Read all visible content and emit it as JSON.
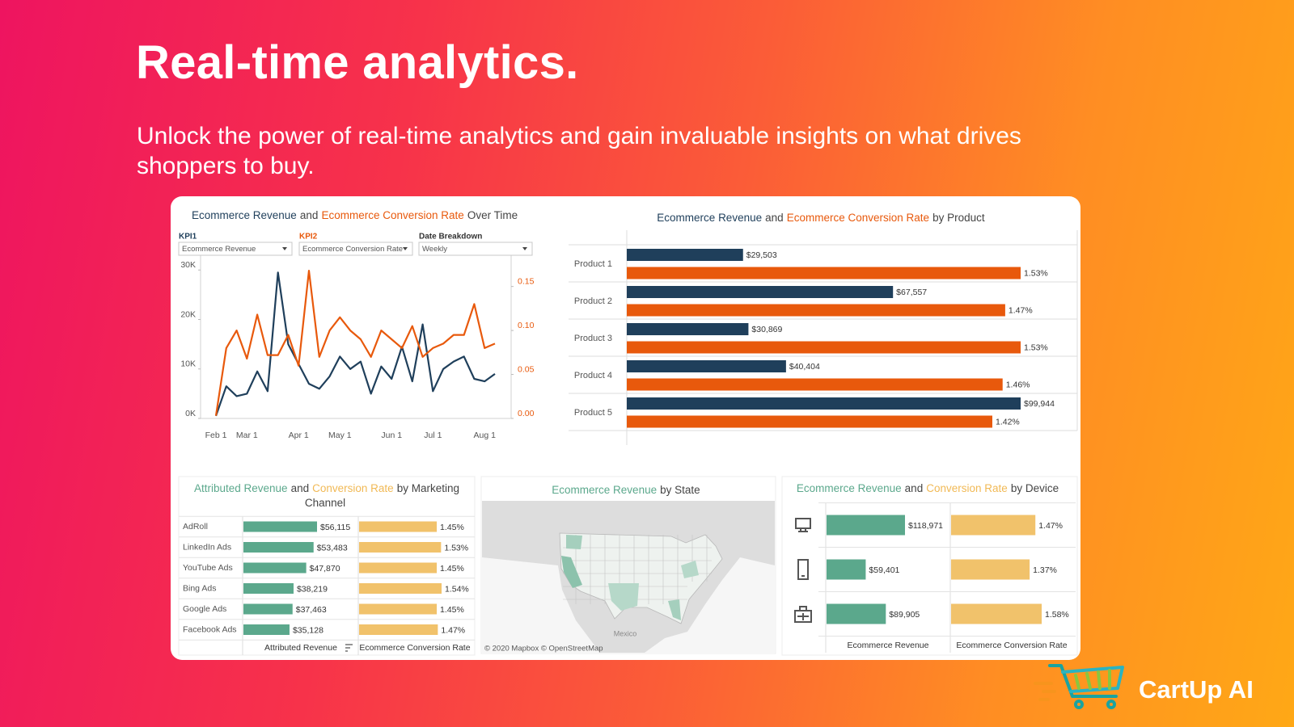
{
  "header": {
    "title": "Real-time analytics.",
    "subtitle": "Unlock the power of real-time analytics and gain invaluable insights on what drives shoppers to buy."
  },
  "brand": "CartUp AI",
  "chart_data": [
    {
      "type": "line",
      "title_parts": [
        {
          "text": "Ecommerce Revenue",
          "color": "#1f3f5b"
        },
        {
          "text": "and",
          "color": "#444444"
        },
        {
          "text": "Ecommerce Conversion Rate",
          "color": "#e8590c"
        },
        {
          "text": "Over Time",
          "color": "#444444"
        }
      ],
      "controls": [
        {
          "label": "KPI1",
          "value": "Ecommerce Revenue",
          "color": "#1f3f5b"
        },
        {
          "label": "KPI2",
          "value": "Ecommerce Conversion Rate",
          "color": "#e8590c"
        },
        {
          "label": "Date Breakdown",
          "value": "Weekly",
          "color": "#333333"
        }
      ],
      "categories": [
        "Feb 1",
        null,
        null,
        "Mar 1",
        null,
        null,
        null,
        null,
        "Apr 1",
        null,
        null,
        null,
        "May 1",
        null,
        null,
        null,
        null,
        "Jun 1",
        null,
        null,
        null,
        "Jul 1",
        null,
        null,
        null,
        null,
        "Aug 1",
        null
      ],
      "series": [
        {
          "color": "#1f3f5b",
          "values": [
            500,
            6500,
            4500,
            5000,
            9500,
            5500,
            29500,
            15000,
            11000,
            7000,
            6000,
            8500,
            12500,
            10000,
            11500,
            5000,
            10500,
            8000,
            14500,
            7500,
            19000,
            5500,
            10000,
            11500,
            12500,
            8000,
            7500,
            9000
          ]
        },
        {
          "color": "#e8590c",
          "axis": "y2",
          "values": [
            0.003,
            0.08,
            0.1,
            0.068,
            0.118,
            0.072,
            0.072,
            0.095,
            0.06,
            0.168,
            0.07,
            0.1,
            0.115,
            0.1,
            0.09,
            0.07,
            0.1,
            0.09,
            0.08,
            0.105,
            0.07,
            0.08,
            0.085,
            0.095,
            0.095,
            0.13,
            0.08,
            0.085
          ]
        }
      ],
      "ylim": [
        0,
        32000
      ],
      "yticks": [
        {
          "value": 0,
          "label": "0K"
        },
        {
          "value": 10000,
          "label": "10K"
        },
        {
          "value": 20000,
          "label": "20K"
        },
        {
          "value": 30000,
          "label": "30K"
        }
      ],
      "y2lim": [
        0,
        0.18
      ],
      "y2ticks": [
        {
          "value": 0,
          "label": "0.00"
        },
        0.05,
        {
          "value": 0.1,
          "label": "0.10"
        },
        0.15
      ]
    },
    {
      "type": "bar",
      "title_parts": [
        {
          "text": "Ecommerce Revenue",
          "color": "#1f3f5b"
        },
        {
          "text": "and",
          "color": "#444444"
        },
        {
          "text": "Ecommerce Conversion Rate",
          "color": "#e8590c"
        },
        {
          "text": "by Product",
          "color": "#444444"
        }
      ],
      "categories": [
        "Product 1",
        "Product 2",
        "Product 3",
        "Product 4",
        "Product 5"
      ],
      "series": [
        {
          "color": "#1f3f5b",
          "values": [
            29503,
            67557,
            30869,
            40404,
            99944
          ],
          "value_labels": [
            "$29,503",
            "$67,557",
            "$30,869",
            "$40,404",
            "$99,944"
          ]
        },
        {
          "color": "#e8590c",
          "values": [
            1.53,
            1.47,
            1.53,
            1.46,
            1.42
          ],
          "value_labels": [
            "1.53%",
            "1.47%",
            "1.53%",
            "1.46%",
            "1.42%"
          ]
        }
      ]
    },
    {
      "type": "bar",
      "title_parts": [
        {
          "text": "Attributed Revenue",
          "color": "#5ba88c"
        },
        {
          "text": "and",
          "color": "#444444"
        },
        {
          "text": "Conversion Rate",
          "color": "#f1b955"
        },
        {
          "text": "by Marketing Channel",
          "color": "#444444"
        }
      ],
      "categories": [
        "AdRoll",
        "LinkedIn Ads",
        "YouTube Ads",
        "Bing Ads",
        "Google Ads",
        "Facebook Ads"
      ],
      "series": [
        {
          "name": "Attributed Revenue",
          "color": "#5ba88c",
          "values": [
            56115,
            53483,
            47870,
            38219,
            37463,
            35128
          ],
          "value_labels": [
            "$56,115",
            "$53,483",
            "$47,870",
            "$38,219",
            "$37,463",
            "$35,128"
          ]
        },
        {
          "name": "Ecommerce Conversion Rate",
          "color": "#f1c26b",
          "values": [
            1.45,
            1.53,
            1.45,
            1.54,
            1.45,
            1.47
          ],
          "value_labels": [
            "1.45%",
            "1.53%",
            "1.45%",
            "1.54%",
            "1.45%",
            "1.47%"
          ]
        }
      ]
    },
    {
      "type": "map",
      "title_parts": [
        {
          "text": "Ecommerce Revenue",
          "color": "#5ba88c"
        },
        {
          "text": "by State",
          "color": "#444444"
        }
      ],
      "attribution": "© 2020 Mapbox © OpenStreetMap",
      "map_label": "Mexico"
    },
    {
      "type": "bar",
      "title_parts": [
        {
          "text": "Ecommerce Revenue",
          "color": "#5ba88c"
        },
        {
          "text": "and",
          "color": "#444444"
        },
        {
          "text": "Conversion Rate",
          "color": "#f1b955"
        },
        {
          "text": "by Device",
          "color": "#444444"
        }
      ],
      "categories": [
        null,
        null,
        null
      ],
      "series": [
        {
          "name": "Ecommerce Revenue",
          "color": "#5ba88c",
          "values": [
            118971,
            59401,
            89905
          ],
          "value_labels": [
            "$118,971",
            "$59,401",
            "$89,905"
          ]
        },
        {
          "name": "Ecommerce Conversion Rate",
          "color": "#f1c26b",
          "values": [
            1.47,
            1.37,
            1.58
          ],
          "value_labels": [
            "1.47%",
            "1.37%",
            "1.58%"
          ]
        }
      ]
    }
  ]
}
